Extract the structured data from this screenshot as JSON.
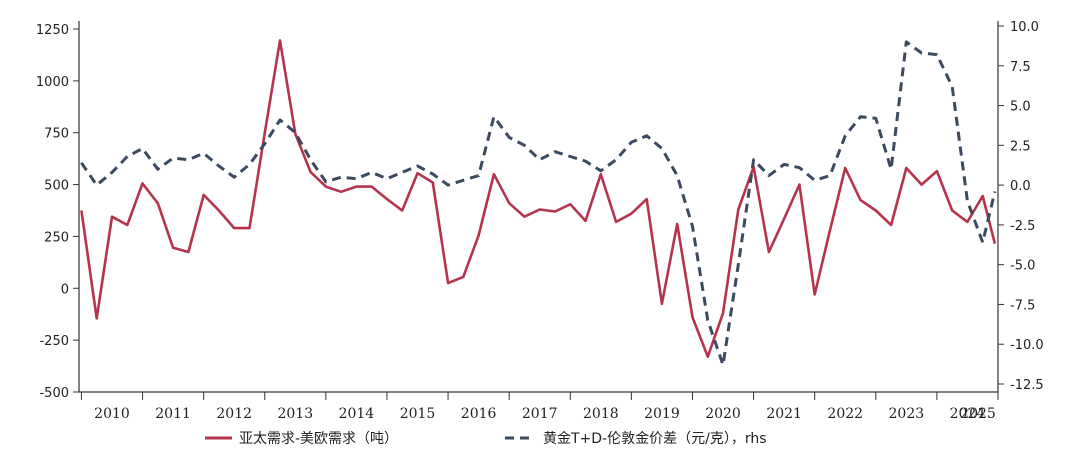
{
  "chart_data": {
    "type": "line",
    "title": "",
    "xlabel": "",
    "ylabel": "",
    "x_tick_labels": [
      "2010",
      "2011",
      "2012",
      "2013",
      "2014",
      "2015",
      "2016",
      "2017",
      "2018",
      "2019",
      "2020",
      "2021",
      "2022",
      "2023",
      "2024",
      "2025"
    ],
    "x_range": [
      2009.96,
      2025.0
    ],
    "left_axis": {
      "ylim": [
        -500,
        1250
      ],
      "ticks": [
        -500,
        -250,
        0,
        250,
        500,
        750,
        1000,
        1250
      ],
      "tick_labels": [
        "-500",
        "-250",
        "0",
        "250",
        "500",
        "750",
        "1000",
        "1250"
      ]
    },
    "right_axis": {
      "ylim": [
        -12.5,
        10.0
      ],
      "ticks": [
        -12.5,
        -10.0,
        -7.5,
        -5.0,
        -2.5,
        0.0,
        2.5,
        5.0,
        7.5,
        10.0
      ],
      "tick_labels": [
        "-12.5",
        "-10.0",
        "-7.5",
        "-5.0",
        "-2.5",
        "0.0",
        "2.5",
        "5.0",
        "7.5",
        "10.0"
      ]
    },
    "grid": false,
    "legend_position": "bottom",
    "series": [
      {
        "name": "亚太需求-美欧需求（吨）",
        "axis": "left",
        "color": "#b5344d",
        "style": "solid",
        "points": [
          [
            2010.0,
            375
          ],
          [
            2010.25,
            -145
          ],
          [
            2010.5,
            345
          ],
          [
            2010.75,
            305
          ],
          [
            2011.0,
            505
          ],
          [
            2011.25,
            410
          ],
          [
            2011.5,
            195
          ],
          [
            2011.75,
            175
          ],
          [
            2012.0,
            450
          ],
          [
            2012.25,
            375
          ],
          [
            2012.5,
            290
          ],
          [
            2012.75,
            290
          ],
          [
            2013.0,
            750
          ],
          [
            2013.25,
            1195
          ],
          [
            2013.5,
            745
          ],
          [
            2013.75,
            560
          ],
          [
            2014.0,
            490
          ],
          [
            2014.25,
            465
          ],
          [
            2014.5,
            490
          ],
          [
            2014.75,
            490
          ],
          [
            2015.0,
            430
          ],
          [
            2015.25,
            375
          ],
          [
            2015.5,
            555
          ],
          [
            2015.75,
            510
          ],
          [
            2016.0,
            25
          ],
          [
            2016.25,
            55
          ],
          [
            2016.5,
            255
          ],
          [
            2016.75,
            550
          ],
          [
            2017.0,
            410
          ],
          [
            2017.25,
            345
          ],
          [
            2017.5,
            380
          ],
          [
            2017.75,
            370
          ],
          [
            2018.0,
            405
          ],
          [
            2018.25,
            325
          ],
          [
            2018.5,
            550
          ],
          [
            2018.75,
            320
          ],
          [
            2019.0,
            360
          ],
          [
            2019.25,
            430
          ],
          [
            2019.5,
            -75
          ],
          [
            2019.75,
            310
          ],
          [
            2020.0,
            -140
          ],
          [
            2020.25,
            -330
          ],
          [
            2020.5,
            -120
          ],
          [
            2020.75,
            380
          ],
          [
            2021.0,
            585
          ],
          [
            2021.25,
            175
          ],
          [
            2021.5,
            335
          ],
          [
            2021.75,
            500
          ],
          [
            2022.0,
            -30
          ],
          [
            2022.25,
            280
          ],
          [
            2022.5,
            580
          ],
          [
            2022.75,
            425
          ],
          [
            2023.0,
            375
          ],
          [
            2023.25,
            305
          ],
          [
            2023.5,
            580
          ],
          [
            2023.75,
            500
          ],
          [
            2024.0,
            565
          ],
          [
            2024.25,
            375
          ],
          [
            2024.5,
            320
          ],
          [
            2024.75,
            445
          ],
          [
            2024.95,
            215
          ]
        ]
      },
      {
        "name": "黄金T+D-伦敦金价差（元/克），rhs",
        "axis": "right",
        "color": "#3b4a5e",
        "style": "dashed",
        "points": [
          [
            2010.0,
            1.4
          ],
          [
            2010.25,
            0.0
          ],
          [
            2010.5,
            0.8
          ],
          [
            2010.75,
            1.8
          ],
          [
            2011.0,
            2.3
          ],
          [
            2011.25,
            1.0
          ],
          [
            2011.5,
            1.7
          ],
          [
            2011.75,
            1.6
          ],
          [
            2012.0,
            2.0
          ],
          [
            2012.25,
            1.2
          ],
          [
            2012.5,
            0.5
          ],
          [
            2012.75,
            1.3
          ],
          [
            2013.0,
            2.6
          ],
          [
            2013.25,
            4.1
          ],
          [
            2013.5,
            3.3
          ],
          [
            2013.75,
            1.6
          ],
          [
            2014.0,
            0.2
          ],
          [
            2014.25,
            0.5
          ],
          [
            2014.5,
            0.4
          ],
          [
            2014.75,
            0.8
          ],
          [
            2015.0,
            0.4
          ],
          [
            2015.25,
            0.8
          ],
          [
            2015.5,
            1.2
          ],
          [
            2015.75,
            0.7
          ],
          [
            2016.0,
            0.0
          ],
          [
            2016.25,
            0.3
          ],
          [
            2016.5,
            0.6
          ],
          [
            2016.75,
            4.3
          ],
          [
            2017.0,
            3.0
          ],
          [
            2017.25,
            2.5
          ],
          [
            2017.5,
            1.6
          ],
          [
            2017.75,
            2.1
          ],
          [
            2018.0,
            1.8
          ],
          [
            2018.25,
            1.5
          ],
          [
            2018.5,
            0.9
          ],
          [
            2018.75,
            1.6
          ],
          [
            2019.0,
            2.7
          ],
          [
            2019.25,
            3.1
          ],
          [
            2019.5,
            2.3
          ],
          [
            2019.75,
            0.6
          ],
          [
            2020.0,
            -2.6
          ],
          [
            2020.25,
            -8.5
          ],
          [
            2020.5,
            -11.3
          ],
          [
            2020.75,
            -5.0
          ],
          [
            2021.0,
            1.6
          ],
          [
            2021.25,
            0.6
          ],
          [
            2021.5,
            1.3
          ],
          [
            2021.75,
            1.1
          ],
          [
            2022.0,
            0.3
          ],
          [
            2022.25,
            0.6
          ],
          [
            2022.5,
            3.1
          ],
          [
            2022.75,
            4.3
          ],
          [
            2023.0,
            4.2
          ],
          [
            2023.25,
            1.0
          ],
          [
            2023.5,
            9.0
          ],
          [
            2023.75,
            8.3
          ],
          [
            2024.0,
            8.2
          ],
          [
            2024.25,
            6.2
          ],
          [
            2024.5,
            -1.0
          ],
          [
            2024.75,
            -3.6
          ],
          [
            2024.95,
            -0.4
          ]
        ]
      }
    ]
  }
}
